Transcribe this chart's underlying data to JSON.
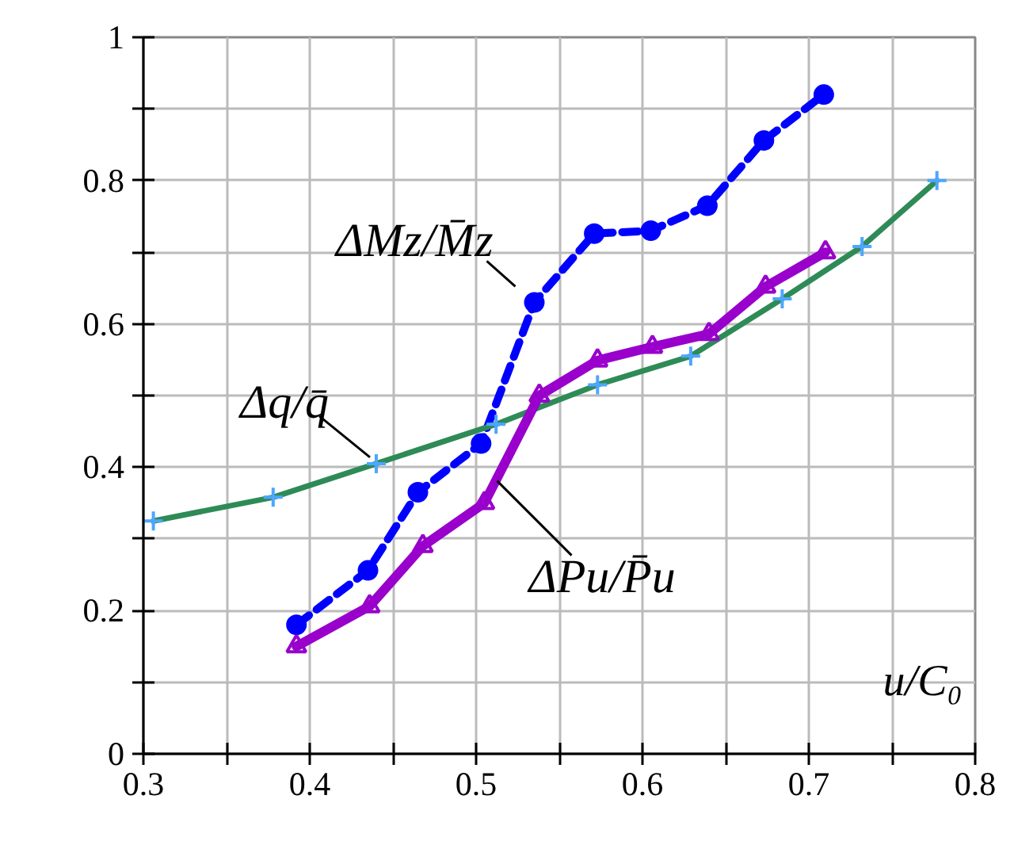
{
  "chart_data": {
    "type": "line",
    "xlabel": "u/C₀",
    "xlim": [
      0.3,
      0.8
    ],
    "xticks": [
      0.3,
      {
        "value": 0.35,
        "label": null
      },
      0.4,
      {
        "value": 0.45,
        "label": null
      },
      0.5,
      {
        "value": 0.55,
        "label": null
      },
      0.6,
      {
        "value": 0.65,
        "label": null
      },
      0.7,
      {
        "value": 0.75,
        "label": null
      },
      0.8
    ],
    "ylim": [
      0,
      1
    ],
    "yticks": [
      0,
      {
        "value": 0.1,
        "label": null
      },
      0.2,
      {
        "value": 0.3,
        "label": null
      },
      0.4,
      {
        "value": 0.5,
        "label": null
      },
      0.6,
      {
        "value": 0.7,
        "label": null
      },
      0.8,
      {
        "value": 0.9,
        "label": null
      },
      1
    ],
    "grid": true,
    "series": [
      {
        "name": "ΔMz/M̄z",
        "color": "#0000ff",
        "marker": "circle",
        "line_style": "dashed",
        "x": [
          0.392,
          0.435,
          0.465,
          0.503,
          0.535,
          0.571,
          0.605,
          0.639,
          0.673,
          0.709
        ],
        "values": [
          0.18,
          0.256,
          0.365,
          0.433,
          0.63,
          0.726,
          0.73,
          0.765,
          0.856,
          0.92
        ]
      },
      {
        "name": "Δq/q̄",
        "color": "#2e8b57",
        "marker": "cross",
        "line_style": "solid",
        "x": [
          0.306,
          0.378,
          0.44,
          0.512,
          0.573,
          0.629,
          0.684,
          0.732,
          0.777
        ],
        "values": [
          0.325,
          0.358,
          0.405,
          0.46,
          0.515,
          0.555,
          0.635,
          0.708,
          0.8
        ]
      },
      {
        "name": "ΔPu/P̄u",
        "color": "#9900cc",
        "marker": "triangle",
        "line_style": "solid",
        "x": [
          0.392,
          0.436,
          0.468,
          0.505,
          0.538,
          0.573,
          0.606,
          0.64,
          0.674,
          0.71
        ],
        "values": [
          0.15,
          0.206,
          0.29,
          0.35,
          0.5,
          0.549,
          0.568,
          0.586,
          0.652,
          0.7
        ]
      }
    ]
  }
}
